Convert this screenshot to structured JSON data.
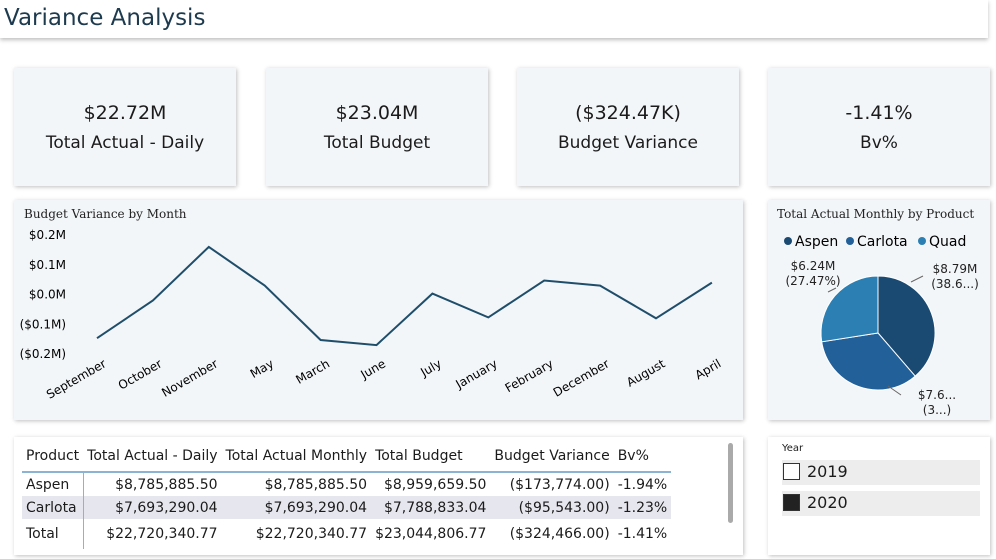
{
  "header": {
    "title": "Variance Analysis"
  },
  "cards": [
    {
      "value": "$22.72M",
      "label": "Total Actual - Daily"
    },
    {
      "value": "$23.04M",
      "label": "Total Budget"
    },
    {
      "value": "($324.47K)",
      "label": "Budget Variance"
    },
    {
      "value": "-1.41%",
      "label": "Bv%"
    }
  ],
  "chart_data": [
    {
      "type": "line",
      "title": "Budget Variance by Month",
      "categories": [
        "September",
        "October",
        "November",
        "May",
        "March",
        "June",
        "July",
        "January",
        "February",
        "December",
        "August",
        "April"
      ],
      "values": [
        -147000,
        -20000,
        160000,
        30000,
        -153000,
        -170000,
        3000,
        -77000,
        47000,
        30000,
        -80000,
        40000
      ],
      "color": "#1f4e6b",
      "ylim": [
        -200000,
        200000
      ],
      "yticks": [
        {
          "value": 200000,
          "label": "$0.2M"
        },
        {
          "value": 100000,
          "label": "$0.1M"
        },
        {
          "value": 0,
          "label": "$0.0M"
        },
        {
          "value": -100000,
          "label": "($0.1M)"
        },
        {
          "value": -200000,
          "label": "($0.2M)"
        }
      ],
      "grid": false
    },
    {
      "type": "pie",
      "title": "Total Actual Monthly by Product",
      "categories": [
        "Aspen",
        "Carlota",
        "Quad"
      ],
      "values": [
        8785885.5,
        7693290.04,
        6241165.23
      ],
      "value_labels": [
        "$8.79M (38.6...)",
        "$7.6... (3...)",
        "$6.24M (27.47%)"
      ],
      "colors": [
        "#1a4a72",
        "#22609a",
        "#2b7fb2"
      ]
    }
  ],
  "table": {
    "columns": [
      "Product",
      "Total Actual - Daily",
      "Total Actual Monthly",
      "Total Budget",
      "Budget Variance",
      "Bv%"
    ],
    "rows": [
      [
        "Aspen",
        "$8,785,885.50",
        "$8,785,885.50",
        "$8,959,659.50",
        "($173,774.00)",
        "-1.94%"
      ],
      [
        "Carlota",
        "$7,693,290.04",
        "$7,693,290.04",
        "$7,788,833.04",
        "($95,543.00)",
        "-1.23%"
      ],
      [
        "Total",
        "$22,720,340.77",
        "$22,720,340.77",
        "$23,044,806.77",
        "($324,466.00)",
        "-1.41%"
      ]
    ]
  },
  "slicer": {
    "title": "Year",
    "options": [
      {
        "label": "2019",
        "selected": false
      },
      {
        "label": "2020",
        "selected": true
      }
    ]
  }
}
